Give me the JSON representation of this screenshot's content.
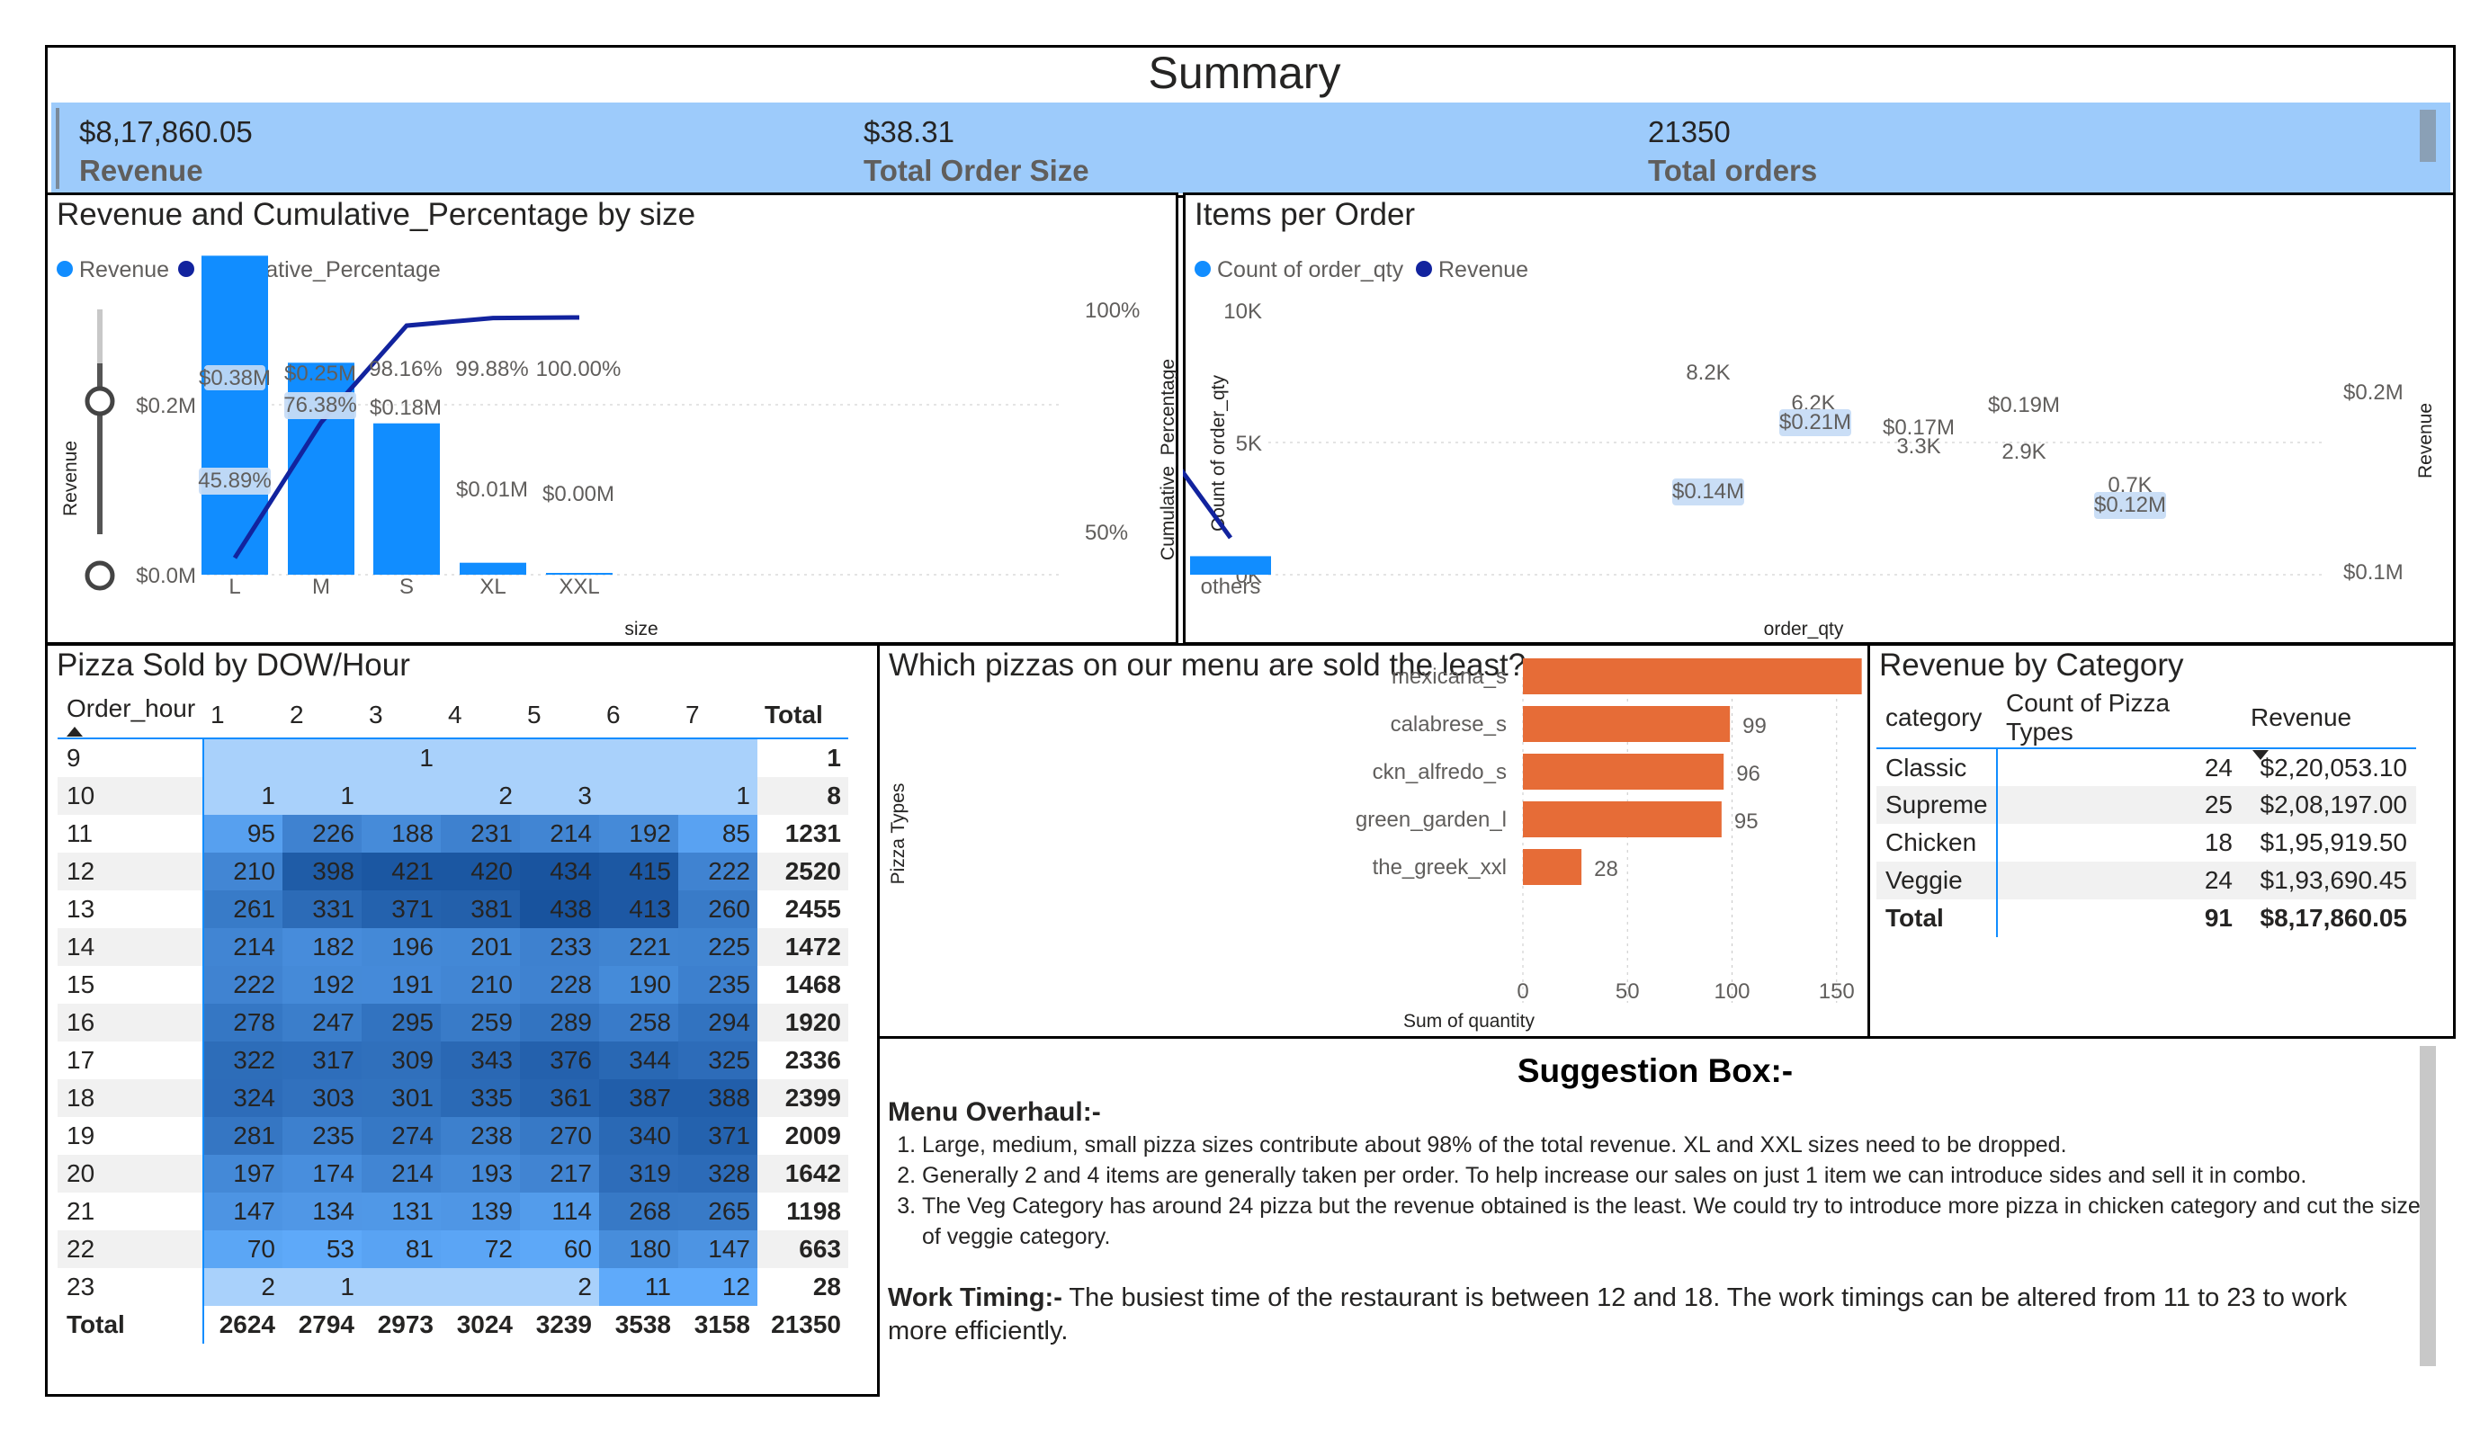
{
  "summary": {
    "title": "Summary",
    "kpis": [
      {
        "value": "$8,17,860.05",
        "label": "Revenue"
      },
      {
        "value": "$38.31",
        "label": "Total Order Size"
      },
      {
        "value": "21350",
        "label": "Total orders"
      }
    ]
  },
  "size_chart": {
    "title": "Revenue and Cumulative_Percentage by size",
    "legend": [
      "Revenue",
      "Cumulative_Percentage"
    ],
    "xlabel": "size",
    "ylabel_left": "Revenue",
    "ylabel_right": "Cumulative_Percentage",
    "left_ticks": [
      "$0.2M",
      "$0.0M"
    ],
    "right_ticks": [
      "100%",
      "50%"
    ],
    "categories": [
      "L",
      "M",
      "S",
      "XL",
      "XXL"
    ],
    "bar_labels": [
      "$0.38M",
      "$0.25M",
      "$0.18M",
      "$0.01M",
      "$0.00M"
    ],
    "line_labels": [
      "45.89%",
      "76.38%",
      "98.16%",
      "99.88%",
      "100.00%"
    ]
  },
  "items_chart": {
    "title": "Items per Order",
    "legend": [
      "Count of order_qty",
      "Revenue"
    ],
    "xlabel": "order_qty",
    "ylabel_left": "Count of order_qty",
    "ylabel_right": "Revenue",
    "left_ticks": [
      "10K",
      "5K",
      "0K"
    ],
    "right_ticks": [
      "$0.2M",
      "$0.1M"
    ],
    "categories": [
      "1",
      "2",
      "3",
      "4",
      "others"
    ],
    "bar_labels": [
      "8.2K",
      "6.2K",
      "3.3K",
      "2.9K",
      "0.7K"
    ],
    "line_labels": [
      "$0.14M",
      "$0.21M",
      "$0.17M",
      "$0.19M",
      "$0.12M"
    ]
  },
  "pizza_chart": {
    "title": "Which pizzas on our menu are sold the least?",
    "xlabel": "Sum of quantity",
    "ylabel": "Pizza Types",
    "ticks": [
      "0",
      "50",
      "100",
      "150",
      "200"
    ]
  },
  "category_table": {
    "title": "Revenue by Category",
    "headers": [
      "category",
      "Count of Pizza Types",
      "Revenue"
    ],
    "rows": [
      [
        "Classic",
        "24",
        "$2,20,053.10"
      ],
      [
        "Supreme",
        "25",
        "$2,08,197.00"
      ],
      [
        "Chicken",
        "18",
        "$1,95,919.50"
      ],
      [
        "Veggie",
        "24",
        "$1,93,690.45"
      ]
    ],
    "total": [
      "Total",
      "91",
      "$8,17,860.05"
    ]
  },
  "heatmap": {
    "title": "Pizza Sold by DOW/Hour",
    "corner": "Order_hour",
    "columns": [
      "1",
      "2",
      "3",
      "4",
      "5",
      "6",
      "7"
    ],
    "total_label": "Total",
    "rows": [
      {
        "hour": "9",
        "cells": [
          "",
          "",
          "1",
          "",
          "",
          "",
          ""
        ],
        "total": "1"
      },
      {
        "hour": "10",
        "cells": [
          "1",
          "1",
          "",
          "2",
          "3",
          "",
          "1"
        ],
        "total": "8"
      },
      {
        "hour": "11",
        "cells": [
          "95",
          "226",
          "188",
          "231",
          "214",
          "192",
          "85"
        ],
        "total": "1231"
      },
      {
        "hour": "12",
        "cells": [
          "210",
          "398",
          "421",
          "420",
          "434",
          "415",
          "222"
        ],
        "total": "2520"
      },
      {
        "hour": "13",
        "cells": [
          "261",
          "331",
          "371",
          "381",
          "438",
          "413",
          "260"
        ],
        "total": "2455"
      },
      {
        "hour": "14",
        "cells": [
          "214",
          "182",
          "196",
          "201",
          "233",
          "221",
          "225"
        ],
        "total": "1472"
      },
      {
        "hour": "15",
        "cells": [
          "222",
          "192",
          "191",
          "210",
          "228",
          "190",
          "235"
        ],
        "total": "1468"
      },
      {
        "hour": "16",
        "cells": [
          "278",
          "247",
          "295",
          "259",
          "289",
          "258",
          "294"
        ],
        "total": "1920"
      },
      {
        "hour": "17",
        "cells": [
          "322",
          "317",
          "309",
          "343",
          "376",
          "344",
          "325"
        ],
        "total": "2336"
      },
      {
        "hour": "18",
        "cells": [
          "324",
          "303",
          "301",
          "335",
          "361",
          "387",
          "388"
        ],
        "total": "2399"
      },
      {
        "hour": "19",
        "cells": [
          "281",
          "235",
          "274",
          "238",
          "270",
          "340",
          "371"
        ],
        "total": "2009"
      },
      {
        "hour": "20",
        "cells": [
          "197",
          "174",
          "214",
          "193",
          "217",
          "319",
          "328"
        ],
        "total": "1642"
      },
      {
        "hour": "21",
        "cells": [
          "147",
          "134",
          "131",
          "139",
          "114",
          "268",
          "265"
        ],
        "total": "1198"
      },
      {
        "hour": "22",
        "cells": [
          "70",
          "53",
          "81",
          "72",
          "60",
          "180",
          "147"
        ],
        "total": "663"
      },
      {
        "hour": "23",
        "cells": [
          "2",
          "1",
          "",
          "",
          "2",
          "11",
          "12"
        ],
        "total": "28"
      }
    ],
    "totals": [
      "2624",
      "2794",
      "2973",
      "3024",
      "3239",
      "3538",
      "3158"
    ],
    "grand_total": "21350"
  },
  "suggestions": {
    "title": "Suggestion Box:-",
    "menu_heading": "Menu Overhaul:-",
    "menu_items": [
      "Large, medium, small pizza sizes contribute about 98% of the total revenue. XL and XXL sizes need to be dropped.",
      "Generally 2 and 4 items are generally taken per order. To help increase our sales on just 1 item we can introduce sides and sell it in combo.",
      "The Veg Category has around 24 pizza but the revenue obtained is the least. We could try to introduce more pizza in chicken category and cut the size of veggie category."
    ],
    "work_heading": "Work Timing:-",
    "work_text": "The busiest time of the restaurant is between 12 and 18. The work timings can be altered from 11 to 23 to work more efficiently."
  },
  "colors": {
    "bar_blue": "#118dff",
    "line_navy": "#12239e",
    "bar_orange": "#e66c37",
    "kpi_band": "#9dcbfb"
  },
  "chart_data": [
    {
      "type": "bar",
      "title": "Revenue and Cumulative_Percentage by size",
      "xlabel": "size",
      "ylabel": "Revenue",
      "categories": [
        "L",
        "M",
        "S",
        "XL",
        "XXL"
      ],
      "series": [
        {
          "name": "Revenue",
          "values": [
            375318.7,
            249382.25,
            178076.5,
            14076.0,
            1006.6
          ]
        },
        {
          "name": "Cumulative_Percentage",
          "values": [
            45.89,
            76.38,
            98.16,
            99.88,
            100.0
          ]
        }
      ],
      "ylim": [
        0,
        0.4
      ],
      "ylim_right": [
        40,
        100
      ]
    },
    {
      "type": "bar",
      "title": "Items per Order",
      "xlabel": "order_qty",
      "ylabel": "Count of order_qty",
      "categories": [
        "1",
        "2",
        "3",
        "4",
        "others"
      ],
      "series": [
        {
          "name": "Count of order_qty",
          "values": [
            8200,
            6200,
            3300,
            2900,
            700
          ]
        },
        {
          "name": "Revenue",
          "values": [
            0.14,
            0.21,
            0.17,
            0.19,
            0.12
          ]
        }
      ],
      "ylim": [
        0,
        10000
      ],
      "ylim_right": [
        0.1,
        0.2
      ]
    },
    {
      "type": "bar",
      "title": "Which pizzas on our menu are sold the least?",
      "xlabel": "Sum of quantity",
      "ylabel": "Pizza Types",
      "categories": [
        "mexicana_s",
        "calabrese_s",
        "ckn_alfredo_s",
        "green_garden_l",
        "the_greek_xxl"
      ],
      "values": [
        162,
        99,
        96,
        95,
        28
      ],
      "xlim": [
        0,
        200
      ]
    },
    {
      "type": "heatmap",
      "title": "Pizza Sold by DOW/Hour",
      "x": [
        "1",
        "2",
        "3",
        "4",
        "5",
        "6",
        "7"
      ],
      "y": [
        "9",
        "10",
        "11",
        "12",
        "13",
        "14",
        "15",
        "16",
        "17",
        "18",
        "19",
        "20",
        "21",
        "22",
        "23"
      ]
    },
    {
      "type": "table",
      "title": "Revenue by Category",
      "columns": [
        "category",
        "Count of Pizza Types",
        "Revenue"
      ]
    }
  ]
}
